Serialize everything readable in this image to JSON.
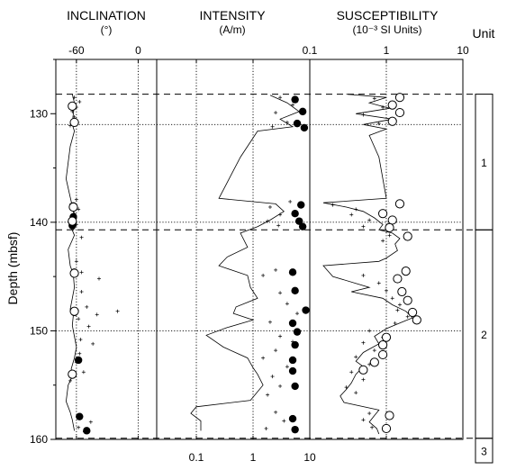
{
  "chart_data": {
    "type": "scatter",
    "depth_axis": {
      "label": "Depth (mbsf)",
      "ylim": [
        160,
        125
      ],
      "ticks": [
        130,
        140,
        150,
        160
      ]
    },
    "boundaries": {
      "dashed": [
        128.2,
        140.7,
        159.9
      ],
      "dotted": [
        131.0,
        140.0,
        150.0
      ]
    },
    "panels": [
      {
        "key": "inclination",
        "title": "INCLINATION",
        "unit": "(°)",
        "scale": "linear",
        "xlim": [
          -80,
          18
        ],
        "ticks": [
          {
            "v": -60,
            "label": "-60"
          },
          {
            "v": 0,
            "label": "0"
          }
        ],
        "trace": [
          [
            128.2,
            -64
          ],
          [
            129,
            -62
          ],
          [
            130,
            -63
          ],
          [
            131,
            -64
          ],
          [
            131.6,
            -62
          ],
          [
            133,
            -66
          ],
          [
            136,
            -70
          ],
          [
            137.7,
            -66
          ],
          [
            138.5,
            -64
          ],
          [
            139.5,
            -62
          ],
          [
            140.5,
            -65
          ],
          [
            141.2,
            -62
          ],
          [
            142.5,
            -68
          ],
          [
            144,
            -66
          ],
          [
            144.8,
            -63
          ],
          [
            146,
            -62
          ],
          [
            147,
            -64
          ],
          [
            148,
            -66
          ],
          [
            148.6,
            -63
          ],
          [
            149.5,
            -64
          ],
          [
            150.5,
            -62
          ],
          [
            151.5,
            -60
          ],
          [
            152.5,
            -62
          ],
          [
            153.5,
            -65
          ],
          [
            154.2,
            -64
          ],
          [
            155,
            -68
          ],
          [
            156.5,
            -70
          ],
          [
            157.5,
            -66
          ],
          [
            158.2,
            -64
          ],
          [
            159.2,
            -62
          ]
        ],
        "crosses": [
          [
            128.5,
            -62
          ],
          [
            128.9,
            -57
          ],
          [
            129.4,
            -60
          ],
          [
            129.8,
            -64
          ],
          [
            130.3,
            -62
          ],
          [
            130.8,
            -59
          ],
          [
            131.1,
            -66
          ],
          [
            137.9,
            -60
          ],
          [
            138.3,
            -65
          ],
          [
            138.8,
            -58
          ],
          [
            139.2,
            -62
          ],
          [
            139.7,
            -66
          ],
          [
            140.2,
            -60
          ],
          [
            140.6,
            -63
          ],
          [
            141.4,
            -55
          ],
          [
            143.6,
            -60
          ],
          [
            144.6,
            -55
          ],
          [
            145.2,
            -38
          ],
          [
            146.4,
            -55
          ],
          [
            147.8,
            -50
          ],
          [
            148.2,
            -20
          ],
          [
            148.5,
            -40
          ],
          [
            148.9,
            -58
          ],
          [
            149.6,
            -48
          ],
          [
            150.8,
            -56
          ],
          [
            151.2,
            -44
          ],
          [
            152.1,
            -57
          ],
          [
            152.9,
            -60
          ],
          [
            153.8,
            -53
          ],
          [
            154.6,
            -66
          ],
          [
            157.8,
            -56
          ],
          [
            158.4,
            -46
          ],
          [
            158.9,
            -58
          ],
          [
            159.3,
            -52
          ]
        ],
        "dots": [
          [
            138.5,
            -63
          ],
          [
            139.5,
            -63
          ],
          [
            140.3,
            -64
          ],
          [
            144.6,
            -62
          ],
          [
            148.3,
            -62
          ],
          [
            152.7,
            -58
          ],
          [
            157.9,
            -57
          ],
          [
            159.2,
            -50
          ]
        ],
        "circles": [
          [
            129.3,
            -64
          ],
          [
            130.8,
            -62
          ],
          [
            138.6,
            -63
          ],
          [
            139.9,
            -64
          ],
          [
            144.7,
            -62
          ],
          [
            148.2,
            -62
          ],
          [
            154.0,
            -64
          ]
        ]
      },
      {
        "key": "intensity",
        "title": "INTENSITY",
        "unit": "(A/m)",
        "scale": "log",
        "xlim": [
          0.02,
          10
        ],
        "ticks": [
          {
            "v": 0.1,
            "label": "0.1"
          },
          {
            "v": 1,
            "label": "1"
          },
          {
            "v": 10,
            "label": "10"
          }
        ],
        "trace": [
          [
            128.3,
            2.0
          ],
          [
            129.0,
            4.0
          ],
          [
            129.8,
            6.5
          ],
          [
            130.5,
            3.0
          ],
          [
            131.2,
            5.0
          ],
          [
            131.6,
            1.2
          ],
          [
            134.0,
            0.6
          ],
          [
            137.8,
            0.25
          ],
          [
            138.3,
            2.5
          ],
          [
            139.0,
            3.5
          ],
          [
            139.8,
            2.0
          ],
          [
            140.4,
            1.2
          ],
          [
            141.0,
            0.6
          ],
          [
            142.3,
            0.8
          ],
          [
            143.2,
            0.35
          ],
          [
            144.0,
            0.25
          ],
          [
            144.9,
            0.8
          ],
          [
            146.0,
            0.9
          ],
          [
            147.0,
            1.2
          ],
          [
            147.8,
            0.5
          ],
          [
            148.4,
            0.45
          ],
          [
            149.0,
            1.0
          ],
          [
            149.7,
            0.35
          ],
          [
            150.4,
            0.15
          ],
          [
            151.5,
            0.3
          ],
          [
            152.5,
            0.8
          ],
          [
            153.4,
            1.0
          ],
          [
            154.0,
            1.2
          ],
          [
            155.0,
            1.5
          ],
          [
            156.4,
            0.9
          ],
          [
            157.0,
            0.1
          ],
          [
            157.6,
            0.08
          ],
          [
            158.3,
            0.12
          ],
          [
            159.2,
            0.12
          ]
        ],
        "crosses": [
          [
            128.5,
            3.0
          ],
          [
            129.2,
            5.0
          ],
          [
            129.9,
            2.5
          ],
          [
            130.8,
            4.0
          ],
          [
            131.2,
            2.2
          ],
          [
            138.1,
            4.5
          ],
          [
            138.6,
            2.0
          ],
          [
            139.3,
            3.0
          ],
          [
            139.9,
            1.8
          ],
          [
            140.3,
            2.8
          ],
          [
            144.4,
            2.5
          ],
          [
            144.9,
            1.5
          ],
          [
            146.5,
            3.0
          ],
          [
            147.5,
            4.0
          ],
          [
            148.4,
            6.0
          ],
          [
            149.2,
            2.0
          ],
          [
            150.5,
            3.0
          ],
          [
            151.0,
            5.0
          ],
          [
            151.8,
            2.5
          ],
          [
            152.5,
            1.5
          ],
          [
            153.3,
            4.0
          ],
          [
            154.2,
            2.2
          ],
          [
            155.1,
            3.0
          ],
          [
            155.9,
            1.8
          ],
          [
            157.5,
            2.5
          ],
          [
            158.3,
            3.5
          ],
          [
            159.0,
            1.7
          ]
        ],
        "dots": [
          [
            128.7,
            5.5
          ],
          [
            129.8,
            7.5
          ],
          [
            130.9,
            6.0
          ],
          [
            131.3,
            8.0
          ],
          [
            138.4,
            7.0
          ],
          [
            139.2,
            5.5
          ],
          [
            139.9,
            6.5
          ],
          [
            140.4,
            7.5
          ],
          [
            144.6,
            5.0
          ],
          [
            146.3,
            5.5
          ],
          [
            148.1,
            8.5
          ],
          [
            149.3,
            5.0
          ],
          [
            150.1,
            6.0
          ],
          [
            151.3,
            5.5
          ],
          [
            152.7,
            5.0
          ],
          [
            153.7,
            5.0
          ],
          [
            155.1,
            5.5
          ],
          [
            158.1,
            5.0
          ],
          [
            159.1,
            5.5
          ]
        ],
        "circles": []
      },
      {
        "key": "susceptibility",
        "title": "SUSCEPTIBILITY",
        "unit": "(10⁻³ SI Units)",
        "scale": "log",
        "xlim": [
          0.1,
          10
        ],
        "ticks": [
          {
            "v": 0.1,
            "label": "0.1"
          },
          {
            "v": 1,
            "label": "1"
          },
          {
            "v": 10,
            "label": "10"
          }
        ],
        "trace": [
          [
            128.2,
            0.3
          ],
          [
            128.5,
            1.0
          ],
          [
            129.0,
            0.6
          ],
          [
            129.5,
            1.1
          ],
          [
            130.0,
            0.4
          ],
          [
            130.5,
            1.2
          ],
          [
            131.0,
            0.5
          ],
          [
            131.4,
            1.0
          ],
          [
            132.0,
            0.6
          ],
          [
            134.0,
            0.8
          ],
          [
            137.8,
            1.0
          ],
          [
            138.2,
            0.15
          ],
          [
            138.6,
            0.3
          ],
          [
            139.0,
            0.5
          ],
          [
            139.6,
            0.7
          ],
          [
            140.2,
            0.9
          ],
          [
            140.7,
            0.8
          ],
          [
            141.0,
            1.2
          ],
          [
            141.5,
            1.5
          ],
          [
            142.0,
            1.3
          ],
          [
            142.6,
            1.4
          ],
          [
            143.3,
            1.0
          ],
          [
            143.6,
            0.8
          ],
          [
            144.0,
            0.15
          ],
          [
            145.0,
            0.2
          ],
          [
            146.0,
            0.6
          ],
          [
            146.4,
            0.35
          ],
          [
            147.0,
            0.9
          ],
          [
            147.6,
            1.2
          ],
          [
            148.2,
            1.8
          ],
          [
            148.8,
            2.2
          ],
          [
            149.2,
            1.6
          ],
          [
            149.8,
            1.0
          ],
          [
            150.5,
            0.7
          ],
          [
            151.2,
            0.8
          ],
          [
            152.0,
            0.5
          ],
          [
            152.8,
            0.4
          ],
          [
            153.3,
            0.5
          ],
          [
            154.0,
            0.4
          ],
          [
            154.8,
            0.35
          ],
          [
            155.4,
            0.3
          ],
          [
            156.0,
            0.25
          ],
          [
            156.6,
            0.28
          ],
          [
            157.3,
            0.8
          ],
          [
            157.8,
            0.7
          ],
          [
            158.4,
            0.6
          ],
          [
            159.0,
            0.75
          ],
          [
            159.5,
            0.8
          ]
        ],
        "crosses": [
          [
            128.6,
            0.7
          ],
          [
            129.4,
            0.9
          ],
          [
            130.1,
            0.5
          ],
          [
            130.9,
            0.8
          ],
          [
            138.4,
            0.2
          ],
          [
            138.8,
            0.4
          ],
          [
            139.3,
            0.35
          ],
          [
            139.8,
            0.6
          ],
          [
            140.4,
            0.5
          ],
          [
            141.2,
            1.1
          ],
          [
            141.7,
            0.9
          ],
          [
            144.9,
            0.5
          ],
          [
            145.6,
            0.8
          ],
          [
            146.3,
            1.0
          ],
          [
            147.0,
            1.2
          ],
          [
            147.6,
            1.5
          ],
          [
            148.1,
            1.4
          ],
          [
            148.7,
            1.9
          ],
          [
            149.3,
            1.3
          ],
          [
            150.0,
            0.6
          ],
          [
            150.6,
            0.9
          ],
          [
            151.1,
            0.5
          ],
          [
            151.8,
            0.7
          ],
          [
            152.4,
            0.4
          ],
          [
            153.1,
            0.6
          ],
          [
            153.8,
            0.35
          ],
          [
            154.5,
            0.5
          ],
          [
            155.2,
            0.3
          ],
          [
            155.7,
            0.4
          ],
          [
            157.6,
            0.6
          ],
          [
            158.2,
            0.5
          ],
          [
            158.9,
            0.65
          ]
        ],
        "dots": [],
        "circles": [
          [
            128.5,
            1.5
          ],
          [
            129.2,
            1.2
          ],
          [
            129.9,
            1.5
          ],
          [
            130.7,
            1.2
          ],
          [
            138.3,
            1.5
          ],
          [
            139.2,
            0.9
          ],
          [
            139.8,
            1.2
          ],
          [
            140.5,
            1.1
          ],
          [
            141.3,
            1.9
          ],
          [
            144.5,
            1.8
          ],
          [
            145.2,
            1.4
          ],
          [
            146.4,
            1.6
          ],
          [
            147.2,
            1.9
          ],
          [
            148.3,
            2.2
          ],
          [
            149.0,
            2.5
          ],
          [
            150.6,
            1.0
          ],
          [
            151.3,
            0.9
          ],
          [
            152.2,
            0.9
          ],
          [
            152.9,
            0.7
          ],
          [
            153.6,
            0.5
          ],
          [
            157.8,
            1.1
          ],
          [
            159.0,
            1.0
          ]
        ]
      }
    ],
    "units_panel": {
      "title": "Unit",
      "units": [
        {
          "label": "1",
          "top": 128.2,
          "bottom": 140.7
        },
        {
          "label": "2",
          "top": 140.7,
          "bottom": 159.9
        },
        {
          "label": "3",
          "top": 159.9,
          "bottom": 163
        }
      ]
    }
  }
}
